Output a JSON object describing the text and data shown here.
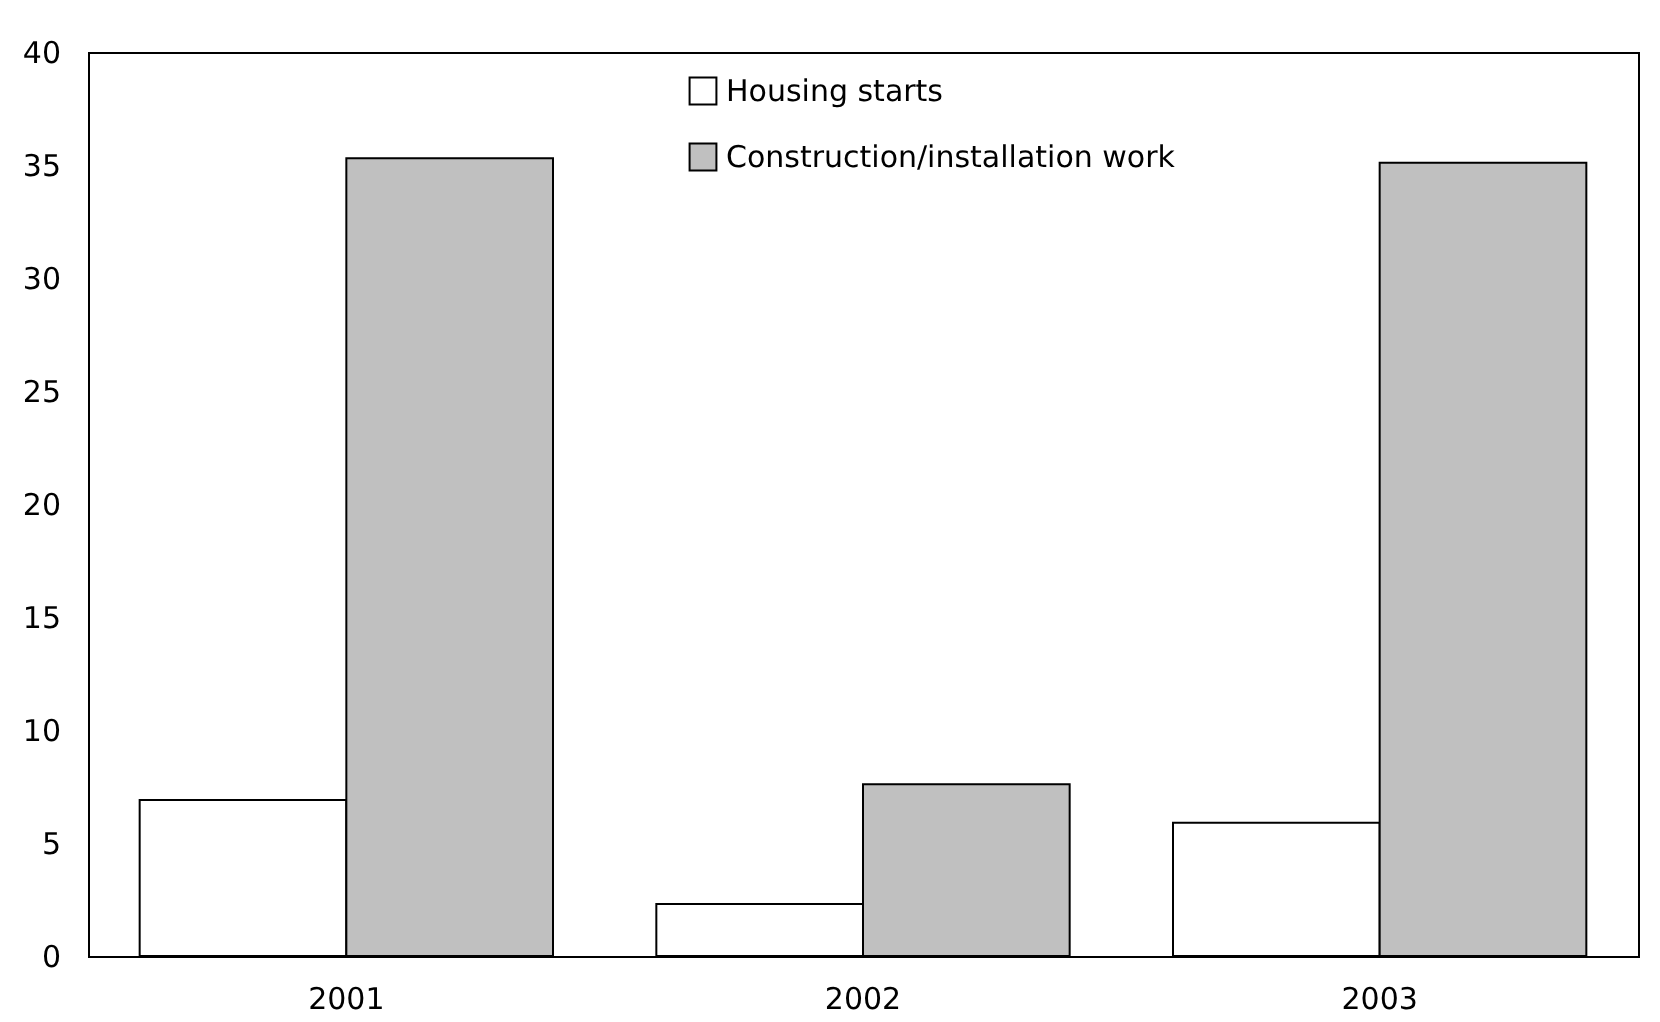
{
  "chart_data": {
    "type": "bar",
    "categories": [
      "2001",
      "2002",
      "2003"
    ],
    "series": [
      {
        "name": "Housing starts",
        "color": "#ffffff",
        "values": [
          6.9,
          2.3,
          5.9
        ]
      },
      {
        "name": "Construction/installation work",
        "color": "#c0c0c0",
        "values": [
          35.3,
          7.6,
          35.1
        ]
      }
    ],
    "ylim": [
      0,
      40
    ],
    "yticks": [
      0,
      5,
      10,
      15,
      20,
      25,
      30,
      35,
      40
    ],
    "grid": false,
    "legend": "top"
  }
}
